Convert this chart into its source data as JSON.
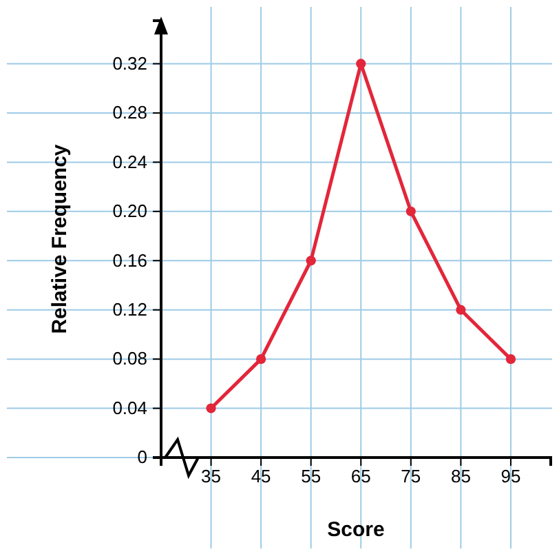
{
  "chart_data": {
    "type": "line",
    "xlabel": "Score",
    "ylabel": "Relative Frequency",
    "x": [
      35,
      45,
      55,
      65,
      75,
      85,
      95
    ],
    "series": [
      {
        "color": "#e3263a",
        "values": [
          0.04,
          0.08,
          0.16,
          0.32,
          0.2,
          0.12,
          0.08
        ]
      }
    ],
    "xlim": [
      25,
      103
    ],
    "xticks": [
      35,
      45,
      55,
      65,
      75,
      85,
      95
    ],
    "ylim": [
      0,
      0.355
    ],
    "yticks": [
      {
        "value": 0,
        "label": "0"
      },
      {
        "value": 0.04,
        "label": "0.04"
      },
      {
        "value": 0.08,
        "label": "0.08"
      },
      {
        "value": 0.12,
        "label": "0.12"
      },
      {
        "value": 0.16,
        "label": "0.16"
      },
      {
        "value": 0.2,
        "label": "0.20"
      },
      {
        "value": 0.24,
        "label": "0.24"
      },
      {
        "value": 0.28,
        "label": "0.28"
      },
      {
        "value": 0.32,
        "label": "0.32"
      }
    ],
    "grid": true,
    "marker": "circle",
    "line_style": "solid"
  }
}
